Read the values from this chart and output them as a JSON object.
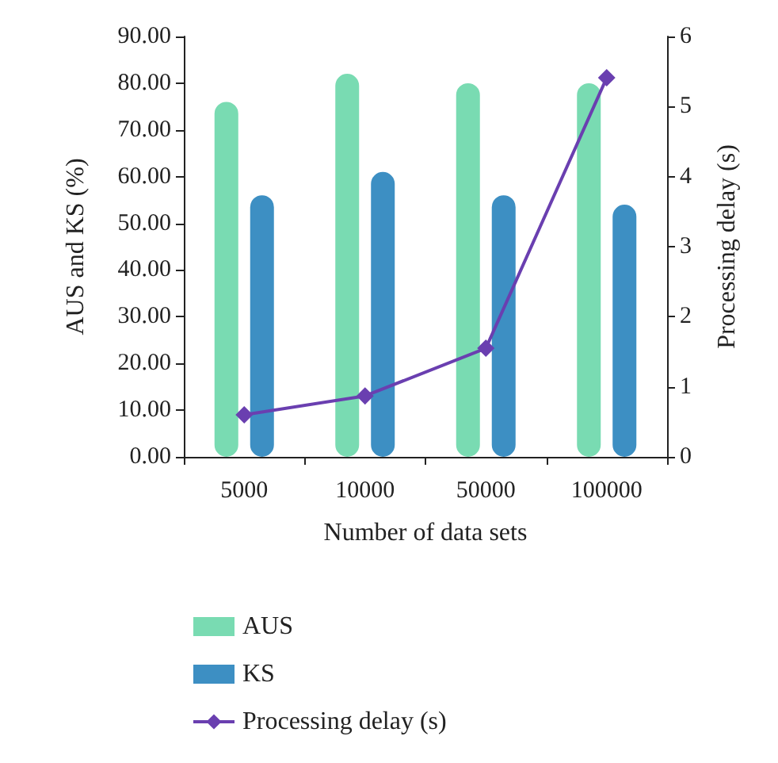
{
  "chart_data": {
    "type": "bar",
    "xlabel": "Number of data sets",
    "ylabel": "AUS and KS (%)",
    "y2label": "Processing delay (s)",
    "categories": [
      "5000",
      "10000",
      "50000",
      "100000"
    ],
    "series": [
      {
        "name": "AUS",
        "color": "#79dbb2",
        "values": [
          76,
          82,
          80,
          80
        ]
      },
      {
        "name": "KS",
        "color": "#3d8fc3",
        "values": [
          56,
          61,
          56,
          54
        ]
      },
      {
        "name": "Processing delay (s)",
        "type": "line",
        "axis": "y2",
        "color": "#6a3fb0",
        "values": [
          0.6,
          0.87,
          1.55,
          5.41
        ]
      }
    ],
    "ylim": [
      0,
      90
    ],
    "yticks": [
      {
        "value": 0,
        "label": "0.00"
      },
      {
        "value": 10,
        "label": "10.00"
      },
      {
        "value": 20,
        "label": "20.00"
      },
      {
        "value": 30,
        "label": "30.00"
      },
      {
        "value": 40,
        "label": "40.00"
      },
      {
        "value": 50,
        "label": "50.00"
      },
      {
        "value": 60,
        "label": "60.00"
      },
      {
        "value": 70,
        "label": "70.00"
      },
      {
        "value": 80,
        "label": "80.00"
      },
      {
        "value": 90,
        "label": "90.00"
      }
    ],
    "y2lim": [
      0,
      6
    ],
    "y2ticks": [
      0,
      1,
      2,
      3,
      4,
      5,
      6
    ],
    "legend": "bottom",
    "grid": false,
    "marker": "diamond",
    "line_style": "solid"
  }
}
